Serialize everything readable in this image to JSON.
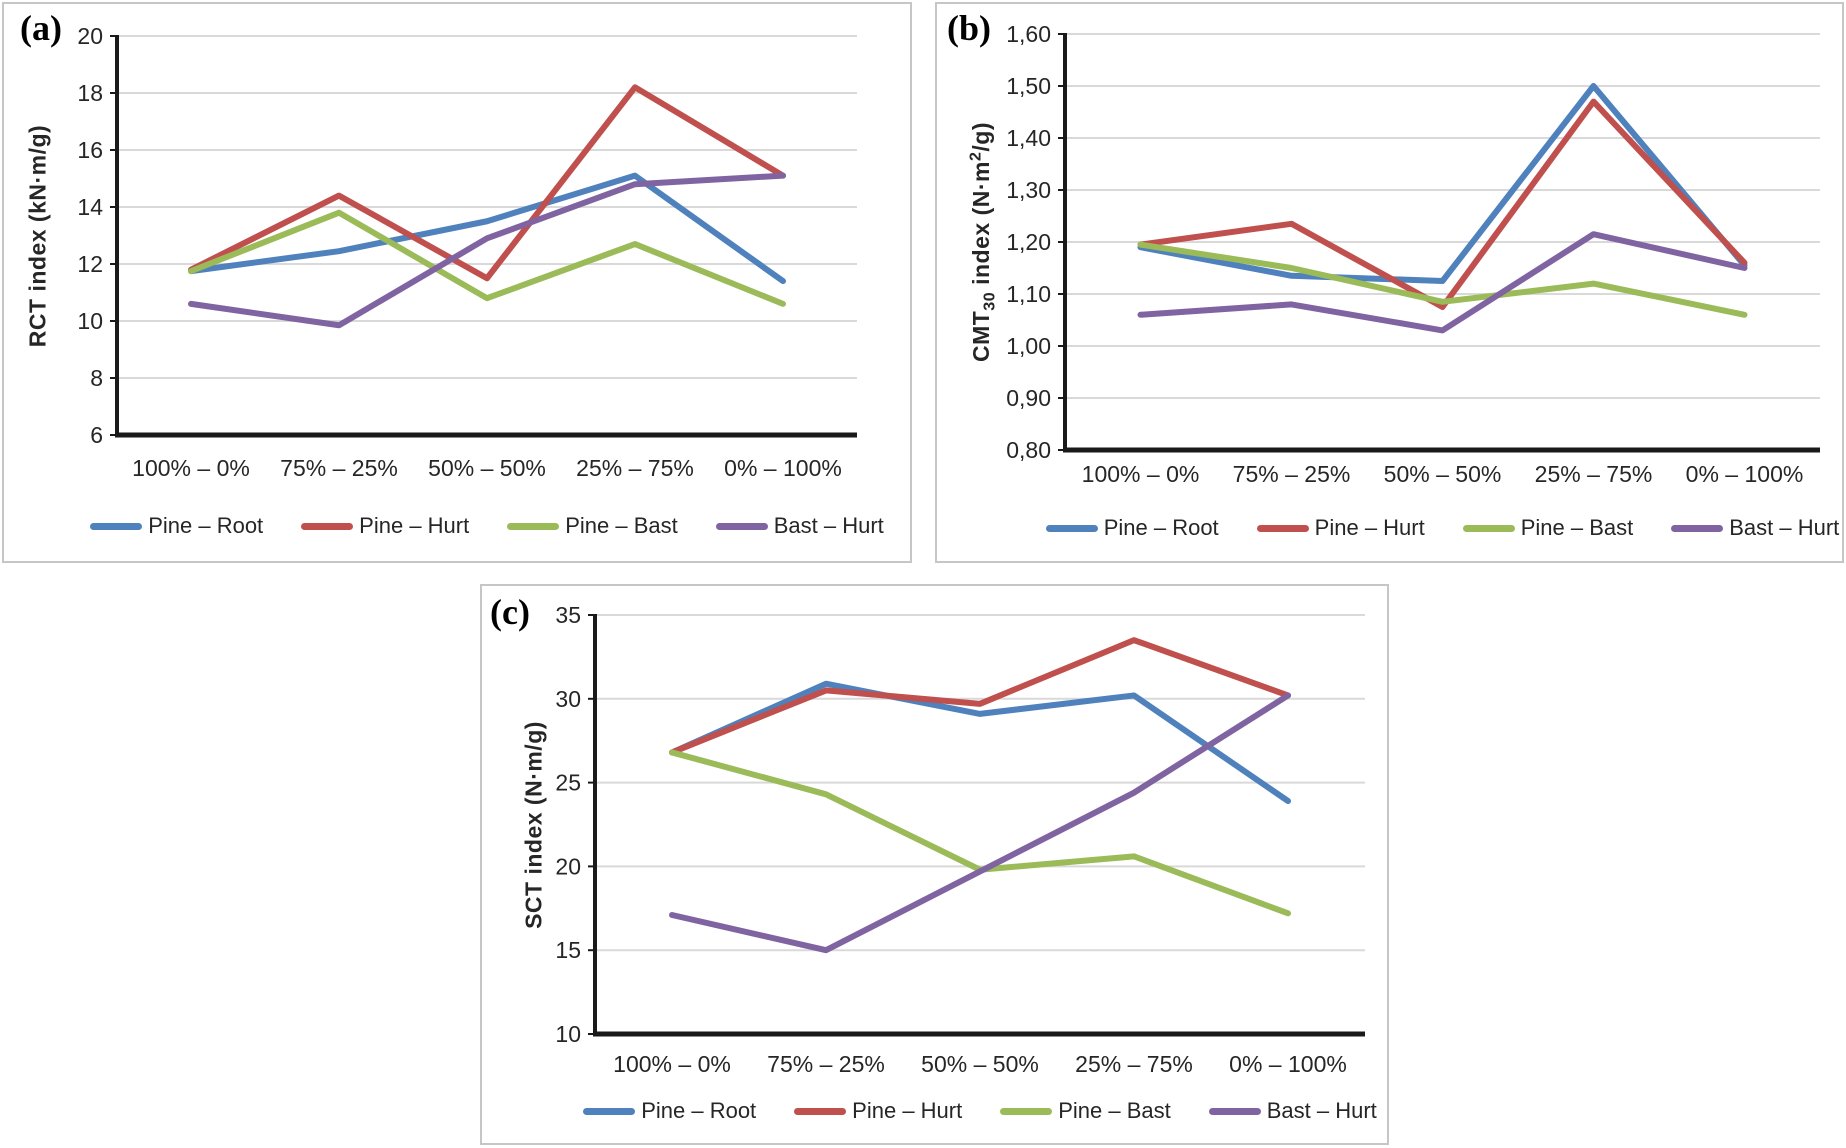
{
  "figure": {
    "background": "#ffffff",
    "panel_border_color": "#c6c6c6",
    "gridline_color": "#d9d9d9",
    "axis_color": "#1a1a1a",
    "text_color": "#262626"
  },
  "chart_data": [
    {
      "type": "line",
      "panel_label": "(a)",
      "ylabel_plain": "RCT index (kN·m/g)",
      "ylabel_segments": [
        {
          "t": "RCT index (kN·m/g)"
        }
      ],
      "xlabel": "",
      "categories": [
        "100% – 0%",
        "75% – 25%",
        "50% – 50%",
        "25% – 75%",
        "0% – 100%"
      ],
      "ylim": [
        6,
        20
      ],
      "ytick_values": [
        6,
        8,
        10,
        12,
        14,
        16,
        18,
        20
      ],
      "ytick_labels": [
        "6",
        "8",
        "10",
        "12",
        "14",
        "16",
        "18",
        "20"
      ],
      "grid": true,
      "legend_position": "bottom",
      "series": [
        {
          "name": "Pine – Root",
          "color": "#4F81BD",
          "values": [
            11.75,
            12.45,
            13.5,
            15.1,
            11.4
          ]
        },
        {
          "name": "Pine – Hurt",
          "color": "#C0504D",
          "values": [
            11.8,
            14.4,
            11.5,
            18.2,
            15.1
          ]
        },
        {
          "name": "Pine – Bast",
          "color": "#9BBB59",
          "values": [
            11.75,
            13.8,
            10.8,
            12.7,
            10.6
          ]
        },
        {
          "name": "Bast – Hurt",
          "color": "#8064A2",
          "values": [
            10.6,
            9.85,
            12.9,
            14.8,
            15.1
          ]
        }
      ]
    },
    {
      "type": "line",
      "panel_label": "(b)",
      "ylabel_plain": "CMT30 index (N·m2/g)",
      "ylabel_segments": [
        {
          "t": "CMT"
        },
        {
          "t": "30",
          "sub": true
        },
        {
          "t": " index (N·m"
        },
        {
          "t": "2",
          "sup": true
        },
        {
          "t": "/g)"
        }
      ],
      "xlabel": "",
      "categories": [
        "100% – 0%",
        "75% – 25%",
        "50% – 50%",
        "25% – 75%",
        "0% – 100%"
      ],
      "ylim": [
        0.8,
        1.6
      ],
      "ytick_values": [
        0.8,
        0.9,
        1.0,
        1.1,
        1.2,
        1.3,
        1.4,
        1.5,
        1.6
      ],
      "ytick_labels": [
        "0,80",
        "0,90",
        "1,00",
        "1,10",
        "1,20",
        "1,30",
        "1,40",
        "1,50",
        "1,60"
      ],
      "grid": true,
      "legend_position": "bottom",
      "series": [
        {
          "name": "Pine – Root",
          "color": "#4F81BD",
          "values": [
            1.19,
            1.135,
            1.125,
            1.5,
            1.155
          ]
        },
        {
          "name": "Pine – Hurt",
          "color": "#C0504D",
          "values": [
            1.195,
            1.235,
            1.075,
            1.47,
            1.16
          ]
        },
        {
          "name": "Pine – Bast",
          "color": "#9BBB59",
          "values": [
            1.195,
            1.15,
            1.085,
            1.12,
            1.06
          ]
        },
        {
          "name": "Bast – Hurt",
          "color": "#8064A2",
          "values": [
            1.06,
            1.08,
            1.03,
            1.215,
            1.15
          ]
        }
      ]
    },
    {
      "type": "line",
      "panel_label": "(c)",
      "ylabel_plain": "SCT index (N·m/g)",
      "ylabel_segments": [
        {
          "t": "SCT index (N·m/g)"
        }
      ],
      "xlabel": "",
      "categories": [
        "100% – 0%",
        "75% – 25%",
        "50% – 50%",
        "25% – 75%",
        "0% – 100%"
      ],
      "ylim": [
        10,
        35
      ],
      "ytick_values": [
        10,
        15,
        20,
        25,
        30,
        35
      ],
      "ytick_labels": [
        "10",
        "15",
        "20",
        "25",
        "30",
        "35"
      ],
      "grid": true,
      "legend_position": "bottom",
      "series": [
        {
          "name": "Pine – Root",
          "color": "#4F81BD",
          "values": [
            26.8,
            30.9,
            29.1,
            30.2,
            23.9
          ]
        },
        {
          "name": "Pine – Hurt",
          "color": "#C0504D",
          "values": [
            26.8,
            30.5,
            29.7,
            33.5,
            30.2
          ]
        },
        {
          "name": "Pine – Bast",
          "color": "#9BBB59",
          "values": [
            26.8,
            24.3,
            19.8,
            20.6,
            17.2
          ]
        },
        {
          "name": "Bast – Hurt",
          "color": "#8064A2",
          "values": [
            17.1,
            15.0,
            19.7,
            24.4,
            30.2
          ]
        }
      ]
    }
  ]
}
